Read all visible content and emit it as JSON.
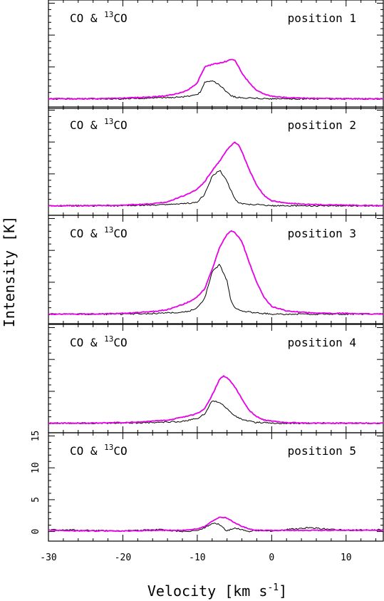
{
  "chart_data": {
    "type": "line",
    "xlabel": "Velocity [km s",
    "xlabel_sup": "-1",
    "xlabel_close": "]",
    "ylabel": "Intensity [K]",
    "xlim": [
      -30,
      15
    ],
    "ylim": [
      -1.5,
      15.5
    ],
    "x_ticks": [
      -30,
      -20,
      -10,
      0,
      10
    ],
    "x_tick_labels": [
      "-30",
      "-20",
      "-10",
      "0",
      "10"
    ],
    "y_ticks": [
      0,
      5,
      10,
      15
    ],
    "y_tick_labels": [
      "0",
      "5",
      "10",
      "15"
    ],
    "series_colors": {
      "CO": "#e600e6",
      "13CO": "#000000"
    },
    "panels": [
      {
        "label_main": "CO & ",
        "label_sup": "13",
        "label_iso": "CO",
        "position": "position 1",
        "x": [
          -30,
          -25,
          -20,
          -16,
          -14,
          -12,
          -11,
          -10,
          -9.5,
          -9,
          -8,
          -7,
          -6,
          -5.5,
          -5,
          -4.5,
          -4,
          -3,
          -2,
          -1,
          0,
          2,
          5,
          10,
          15
        ],
        "CO": [
          0,
          0,
          0.1,
          0.3,
          0.5,
          1,
          1.6,
          2.5,
          3.8,
          5,
          5.4,
          5.6,
          5.9,
          6.2,
          6.1,
          5.2,
          4,
          2.5,
          1.3,
          0.7,
          0.4,
          0.2,
          0.1,
          0,
          0
        ],
        "13CO": [
          0,
          0,
          0,
          0.1,
          0.2,
          0.3,
          0.4,
          0.6,
          1.2,
          2.6,
          2.9,
          2.2,
          1,
          0.5,
          0.3,
          0.2,
          0.2,
          0.1,
          0.1,
          0,
          0,
          0,
          0,
          0,
          0
        ]
      },
      {
        "label_main": "CO & ",
        "label_sup": "13",
        "label_iso": "CO",
        "position": "position 2",
        "x": [
          -30,
          -25,
          -20,
          -16,
          -14,
          -12,
          -11,
          -10,
          -9,
          -8,
          -7,
          -6,
          -5,
          -4.5,
          -4,
          -3,
          -2,
          -1,
          0,
          2,
          5,
          10,
          15
        ],
        "CO": [
          0,
          0,
          0.1,
          0.3,
          0.6,
          1.5,
          2,
          2.6,
          3.8,
          5.5,
          7,
          8.8,
          10,
          9.6,
          8.5,
          5.6,
          3.2,
          1.6,
          0.8,
          0.4,
          0.2,
          0.1,
          0
        ],
        "13CO": [
          0,
          0,
          0,
          0.1,
          0.2,
          0.3,
          0.4,
          0.6,
          1.8,
          4.6,
          5.6,
          3.8,
          1.2,
          0.5,
          0.3,
          0.2,
          0.2,
          0.1,
          0,
          0,
          0,
          0,
          0
        ]
      },
      {
        "label_main": "CO & ",
        "label_sup": "13",
        "label_iso": "CO",
        "position": "position 3",
        "x": [
          -30,
          -25,
          -20,
          -16,
          -14,
          -12,
          -11,
          -10,
          -9,
          -8,
          -7,
          -6,
          -5.5,
          -5,
          -4,
          -3,
          -2,
          -1,
          0,
          2,
          5,
          10,
          15
        ],
        "CO": [
          0,
          0,
          0.1,
          0.4,
          0.7,
          1.5,
          2,
          2.7,
          4,
          7,
          10.5,
          12.5,
          13.1,
          12.9,
          11.4,
          8,
          5,
          2.6,
          1.2,
          0.5,
          0.2,
          0.1,
          0
        ],
        "13CO": [
          0,
          0,
          0,
          0.1,
          0.2,
          0.3,
          0.5,
          1,
          2.5,
          6.6,
          7.8,
          5.2,
          2.2,
          1,
          0.5,
          0.3,
          0.2,
          0.1,
          0,
          0,
          0,
          0,
          0
        ]
      },
      {
        "label_main": "CO & ",
        "label_sup": "13",
        "label_iso": "CO",
        "position": "position 4",
        "x": [
          -30,
          -25,
          -20,
          -16,
          -14,
          -12,
          -10,
          -9,
          -8,
          -7,
          -6.5,
          -6,
          -5,
          -4,
          -3,
          -2,
          -1,
          0,
          2,
          5,
          10,
          15
        ],
        "CO": [
          0,
          0,
          0.1,
          0.3,
          0.5,
          0.9,
          1.5,
          2.3,
          4.4,
          6.9,
          7.4,
          7.2,
          5.8,
          3.8,
          2,
          1,
          0.5,
          0.3,
          0.1,
          0,
          0,
          0
        ],
        "13CO": [
          0,
          0,
          0,
          0.1,
          0.2,
          0.3,
          0.7,
          1.5,
          3.5,
          3.3,
          2.8,
          2.3,
          1.2,
          0.6,
          0.3,
          0.1,
          0.1,
          0,
          0,
          0,
          0,
          0
        ]
      },
      {
        "label_main": "CO & ",
        "label_sup": "13",
        "label_iso": "CO",
        "position": "position 5",
        "x": [
          -30,
          -25,
          -20,
          -15,
          -12,
          -10,
          -9,
          -8,
          -7,
          -6,
          -5,
          -4,
          -3,
          -2,
          0,
          5,
          10,
          15
        ],
        "CO": [
          0.2,
          0.1,
          0.1,
          0.2,
          0.2,
          0.4,
          0.8,
          1.6,
          2.3,
          2.1,
          1.4,
          0.8,
          0.4,
          0.2,
          0.2,
          0.2,
          0.2,
          0.2
        ],
        "13CO": [
          0.3,
          0.2,
          0.1,
          0.3,
          0,
          0.2,
          0.6,
          1.3,
          1.1,
          0.1,
          0.6,
          0.3,
          0,
          0.2,
          0.1,
          0.6,
          0.2,
          0.3
        ]
      }
    ]
  }
}
